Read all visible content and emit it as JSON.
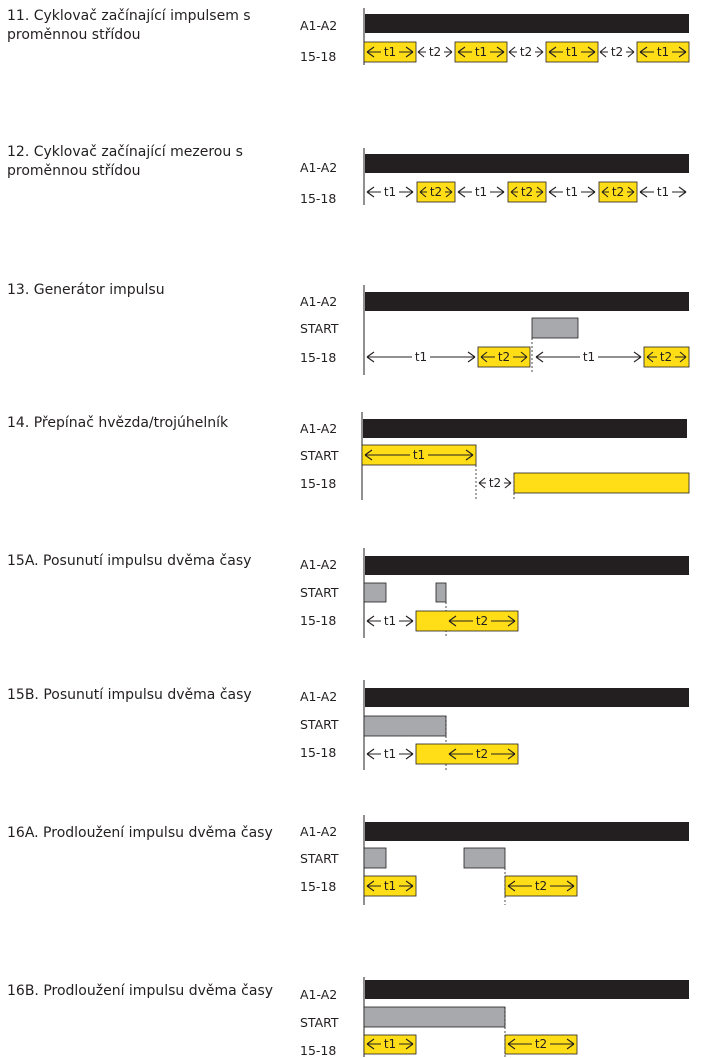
{
  "functions": [
    {
      "title": "11. Cyklovač začínající impulsem s proměnnou střídou",
      "signals": [
        "A1-A2",
        "15-18"
      ],
      "timing": [
        "t1",
        "t2",
        "t1",
        "t2",
        "t1",
        "t2",
        "t1"
      ]
    },
    {
      "title": "12. Cyklovač začínající mezerou s proměnnou střídou",
      "signals": [
        "A1-A2",
        "15-18"
      ],
      "timing": [
        "t1",
        "t2",
        "t1",
        "t2",
        "t1",
        "t2",
        "t1"
      ]
    },
    {
      "title": "13. Generátor impulsu",
      "signals": [
        "A1-A2",
        "START",
        "15-18"
      ],
      "timing": [
        "t1",
        "t2",
        "t1",
        "t2"
      ]
    },
    {
      "title": "14. Přepínač hvězda/trojúhelník",
      "signals": [
        "A1-A2",
        "START",
        "15-18"
      ],
      "timing": [
        "t1",
        "t2"
      ]
    },
    {
      "title": "15A. Posunutí impulsu dvěma časy",
      "signals": [
        "A1-A2",
        "START",
        "15-18"
      ],
      "timing": [
        "t1",
        "t2"
      ]
    },
    {
      "title": "15B. Posunutí impulsu dvěma časy",
      "signals": [
        "A1-A2",
        "START",
        "15-18"
      ],
      "timing": [
        "t1",
        "t2"
      ]
    },
    {
      "title": "16A. Prodloužení impulsu dvěma časy",
      "signals": [
        "A1-A2",
        "START",
        "15-18"
      ],
      "timing": [
        "t1",
        "t2"
      ]
    },
    {
      "title": "16B. Prodloužení impulsu dvěma časy",
      "signals": [
        "A1-A2",
        "START",
        "15-18"
      ],
      "timing": [
        "t1",
        "t2"
      ]
    }
  ],
  "colors": {
    "supply": "#231f20",
    "start": "#a7a9ac",
    "output": "#ffde17",
    "outline": "#231f20"
  }
}
